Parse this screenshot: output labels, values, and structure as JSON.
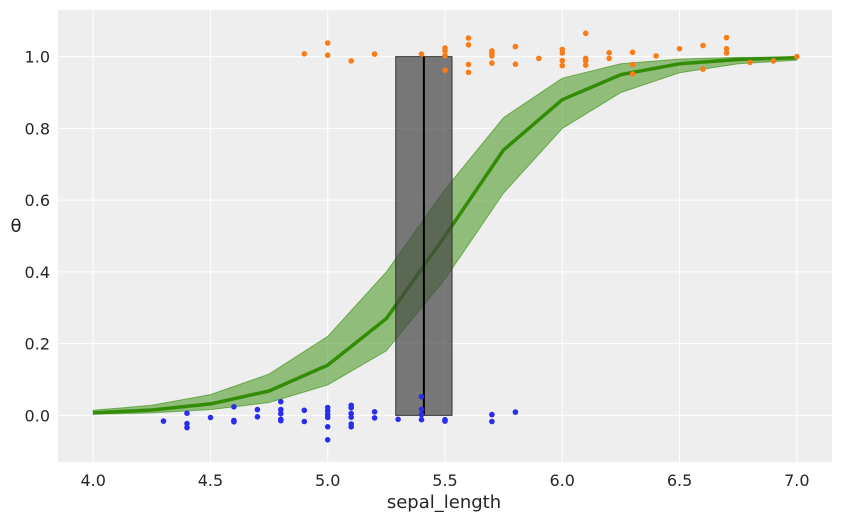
{
  "chart_data": {
    "type": "scatter",
    "title": "",
    "xlabel": "sepal_length",
    "ylabel": "θ",
    "xlim": [
      3.85,
      7.15
    ],
    "ylim": [
      -0.13,
      1.13
    ],
    "grid": true,
    "x_ticks": [
      "4.0",
      "4.5",
      "5.0",
      "5.5",
      "6.0",
      "6.5",
      "7.0"
    ],
    "y_ticks": [
      "0.0",
      "0.2",
      "0.4",
      "0.6",
      "0.8",
      "1.0"
    ],
    "colors": {
      "background": "#eeeeee",
      "grid": "#ffffff",
      "class0": "#2a2eec",
      "class1": "#fa7c17",
      "curve": "#328c06",
      "band": "#328c06",
      "boundary": "#000000",
      "boundary_hdi": "#444444"
    },
    "curve": {
      "x": [
        4.0,
        4.25,
        4.5,
        4.75,
        5.0,
        5.25,
        5.5,
        5.75,
        6.0,
        6.25,
        6.5,
        6.75,
        7.0
      ],
      "y": [
        0.007,
        0.015,
        0.032,
        0.068,
        0.14,
        0.27,
        0.5,
        0.74,
        0.88,
        0.95,
        0.98,
        0.992,
        0.997
      ]
    },
    "hdi_band": {
      "x": [
        4.0,
        4.25,
        4.5,
        4.75,
        5.0,
        5.25,
        5.5,
        5.75,
        6.0,
        6.25,
        6.5,
        6.75,
        7.0
      ],
      "lower": [
        0.003,
        0.007,
        0.016,
        0.036,
        0.085,
        0.18,
        0.38,
        0.62,
        0.8,
        0.9,
        0.955,
        0.98,
        0.99
      ],
      "upper": [
        0.014,
        0.028,
        0.058,
        0.115,
        0.22,
        0.4,
        0.63,
        0.83,
        0.94,
        0.98,
        0.993,
        0.998,
        0.999
      ]
    },
    "decision_boundary": {
      "x": 5.41,
      "hdi": [
        5.29,
        5.53
      ]
    },
    "series": [
      {
        "class": 0,
        "x": [
          4.3,
          4.4,
          4.4,
          4.4,
          4.5,
          4.6,
          4.6,
          4.6,
          4.7,
          4.7,
          4.8,
          4.8,
          4.8,
          4.8,
          4.8,
          4.9,
          4.9,
          5.0,
          5.0,
          5.0,
          5.0,
          5.0,
          5.0,
          5.1,
          5.1,
          5.1,
          5.1,
          5.1,
          5.1,
          5.2,
          5.2,
          5.3,
          5.4,
          5.4,
          5.4,
          5.4,
          5.5,
          5.5,
          5.7,
          5.7,
          5.8
        ],
        "y": [
          -0.016,
          0.006,
          -0.023,
          -0.034,
          -0.006,
          0.024,
          -0.014,
          -0.018,
          0.016,
          -0.004,
          0.038,
          0.016,
          0.005,
          -0.015,
          -0.011,
          0.014,
          -0.017,
          0.022,
          0.012,
          0.002,
          -0.006,
          -0.032,
          -0.068,
          0.028,
          0.021,
          0.005,
          -0.005,
          -0.024,
          -0.032,
          0.01,
          -0.007,
          -0.011,
          0.052,
          0.017,
          0.002,
          -0.012,
          -0.012,
          -0.016,
          0.002,
          -0.017,
          0.009
        ]
      },
      {
        "class": 1,
        "x": [
          4.9,
          5.0,
          5.0,
          5.1,
          5.2,
          5.4,
          5.5,
          5.5,
          5.5,
          5.5,
          5.6,
          5.6,
          5.6,
          5.6,
          5.7,
          5.7,
          5.7,
          5.7,
          5.8,
          5.8,
          5.9,
          6.0,
          6.0,
          6.0,
          6.0,
          6.1,
          6.1,
          6.1,
          6.1,
          6.2,
          6.2,
          6.3,
          6.3,
          6.3,
          6.4,
          6.5,
          6.6,
          6.6,
          6.7,
          6.7,
          6.7,
          6.8,
          6.9,
          7.0
        ],
        "y": [
          1.008,
          1.038,
          1.004,
          0.988,
          1.007,
          1.007,
          1.024,
          1.016,
          1.003,
          0.962,
          1.052,
          1.033,
          0.978,
          0.956,
          1.016,
          1.009,
          1.002,
          0.982,
          1.028,
          0.979,
          0.995,
          1.02,
          1.01,
          0.989,
          0.975,
          1.065,
          0.995,
          0.988,
          0.976,
          1.011,
          0.995,
          1.012,
          0.978,
          0.952,
          1.002,
          1.022,
          1.031,
          0.965,
          1.053,
          1.022,
          1.01,
          0.984,
          0.988,
          1.0
        ]
      }
    ]
  }
}
